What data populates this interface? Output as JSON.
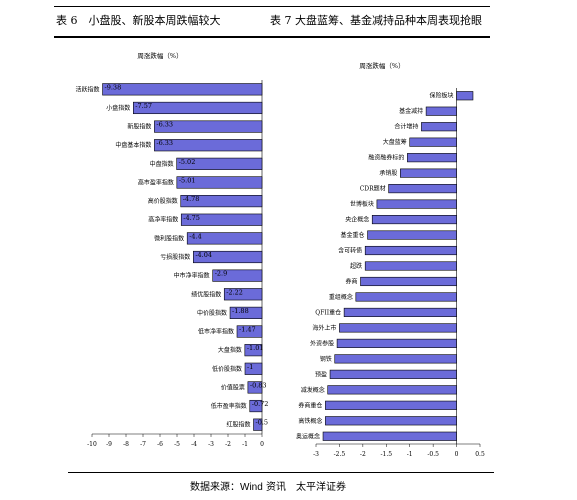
{
  "header": {
    "left_title": "表 6　小盘股、新股本周跌幅较大",
    "right_title": "表 7 大盘蓝筹、基金减持品种本周表现抢眼"
  },
  "footer": {
    "source_prefix": "数据来源：",
    "source_wind": "Wind",
    "source_suffix": " 资讯　太平洋证券"
  },
  "chart_data": [
    {
      "type": "bar",
      "orientation": "horizontal",
      "title": "周涨跌幅（%）",
      "categories": [
        "活跃指数",
        "小盘指数",
        "新股指数",
        "中盘基本指数",
        "中盘指数",
        "高市盈率指数",
        "高价股指数",
        "高净率指数",
        "微利股指数",
        "亏损股指数",
        "中市净率指数",
        "绩优股指数",
        "中价股指数",
        "低市净率指数",
        "大盘指数",
        "低价股指数",
        "价值股票",
        "低市盈率指数",
        "红股指数"
      ],
      "values": [
        -9.38,
        -7.57,
        -6.33,
        -6.33,
        -5.02,
        -5.01,
        -4.78,
        -4.75,
        -4.4,
        -4.04,
        -2.9,
        -2.22,
        -1.88,
        -1.47,
        -1.01,
        -1,
        -0.83,
        -0.72,
        -0.5
      ],
      "value_labels": [
        "-9.38",
        "-7.57",
        "-6.33",
        "-6.33",
        "-5.02",
        "-5.01",
        "-4.78",
        "-4.75",
        "-4.4",
        "-4.04",
        "-2.9",
        "-2.22",
        "-1.88",
        "-1.47",
        "-1.01",
        "-1",
        "-0.83",
        "-0.72",
        "-0.5"
      ],
      "xlim": [
        -10,
        0
      ],
      "xticks": [
        "-10",
        "-9",
        "-8",
        "-7",
        "-6",
        "-5",
        "-4",
        "-3",
        "-2",
        "-1",
        "0"
      ]
    },
    {
      "type": "bar",
      "orientation": "horizontal",
      "title": "周涨跌幅（%）",
      "categories": [
        "保险板块",
        "基金减持",
        "合计增持",
        "大盘蓝筹",
        "融资融券标的",
        "承销股",
        "CDR题材",
        "世博板块",
        "央企概念",
        "基金重仓",
        "含可转债",
        "超跌",
        "券商",
        "重组概念",
        "QFII重仓",
        "海外上市",
        "外资参股",
        "钢铁",
        "预盈",
        "减发概念",
        "券商重仓",
        "高铁概念",
        "奥运概念"
      ],
      "values": [
        0.35,
        -0.65,
        -0.75,
        -1.0,
        -1.05,
        -1.2,
        -1.45,
        -1.7,
        -1.8,
        -1.9,
        -1.95,
        -1.95,
        -2.05,
        -2.15,
        -2.4,
        -2.5,
        -2.55,
        -2.6,
        -2.7,
        -2.75,
        -2.8,
        -2.8,
        -2.85
      ],
      "xlim": [
        -3,
        0.5
      ],
      "xticks": [
        "-3",
        "-2.5",
        "-2",
        "-1.5",
        "-1",
        "-0.5",
        "0",
        "0.5"
      ]
    }
  ]
}
